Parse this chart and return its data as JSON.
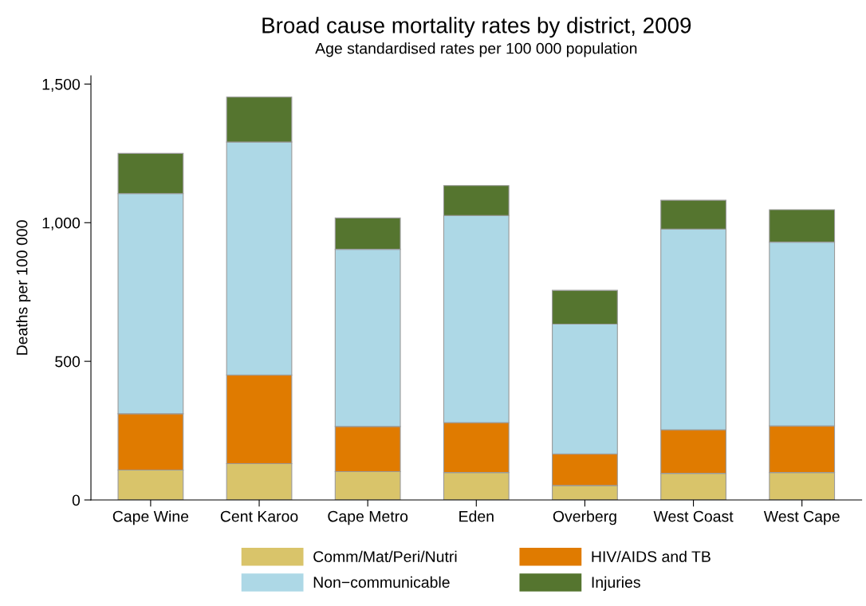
{
  "chart_data": {
    "type": "bar",
    "stacked": true,
    "title": "Broad cause mortality rates by district, 2009",
    "subtitle": "Age standardised rates per 100 000 population",
    "ylabel": "Deaths per 100 000",
    "categories": [
      "Cape Wine",
      "Cent Karoo",
      "Cape Metro",
      "Eden",
      "Overberg",
      "West Coast",
      "West Cape"
    ],
    "series": [
      {
        "name": "Comm/Mat/Peri/Nutri",
        "color": "#d9c46a",
        "values": [
          108,
          131,
          102,
          99,
          52,
          96,
          99
        ]
      },
      {
        "name": "HIV/AIDS and TB",
        "color": "#e07b00",
        "values": [
          203,
          320,
          163,
          180,
          114,
          157,
          168
        ]
      },
      {
        "name": "Non−communicable",
        "color": "#add8e6",
        "values": [
          794,
          840,
          639,
          747,
          468,
          724,
          663
        ]
      },
      {
        "name": "Injuries",
        "color": "#55752f",
        "values": [
          145,
          162,
          113,
          108,
          122,
          104,
          117
        ]
      }
    ],
    "ylim": [
      0,
      1530
    ],
    "yticks": [
      0,
      500,
      {
        "value": 1000,
        "label": "1,000"
      },
      {
        "value": 1500,
        "label": "1,500"
      }
    ],
    "grid": false,
    "legend": "bottom"
  }
}
